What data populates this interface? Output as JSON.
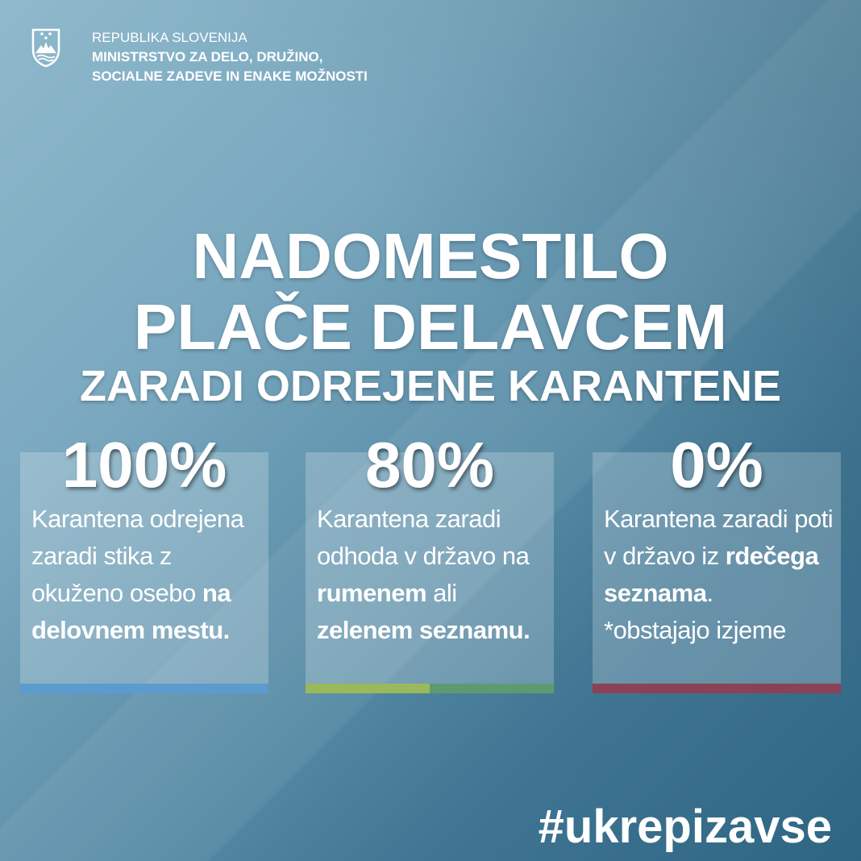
{
  "header": {
    "line1": "REPUBLIKA SLOVENIJA",
    "line2": "MINISTRSTVO ZA DELO, DRUŽINO,",
    "line3": "SOCIALNE ZADEVE IN ENAKE MOŽNOSTI",
    "logo_icon": "slovenia-coat-of-arms"
  },
  "title": {
    "line1": "NADOMESTILO",
    "line2": "PLAČE DELAVCEM",
    "line3": "ZARADI ODREJENE KARANTENE"
  },
  "cards": [
    {
      "percent": "100%",
      "text_a": "Karantena odrejena zaradi stika z okuženo osebo ",
      "bold_a": "na delovnem mestu.",
      "colors": [
        "#5b9bd0"
      ]
    },
    {
      "percent": "80%",
      "text_a": "Karantena zaradi odhoda v državo na ",
      "bold_a": "rumenem",
      "text_b": " ali ",
      "bold_b": "zelenem seznamu.",
      "colors": [
        "#9ab95a",
        "#5e9a70"
      ]
    },
    {
      "percent": "0%",
      "text_a": "Karantena zaradi poti v državo iz ",
      "bold_a": "rdečega seznama",
      "text_b": ".",
      "note": "*obstajajo izjeme",
      "colors": [
        "#8a4254"
      ]
    }
  ],
  "hashtag": "#ukrepizavse"
}
